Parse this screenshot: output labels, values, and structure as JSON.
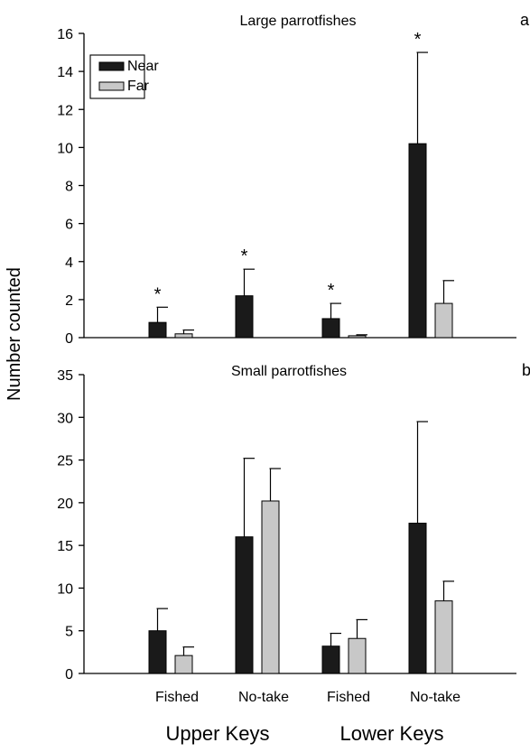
{
  "ylabel": "Number counted",
  "xlabels": [
    "Fished",
    "No-take",
    "Fished",
    "No-take"
  ],
  "group_labels": [
    "Upper Keys",
    "Lower Keys"
  ],
  "colors": {
    "near": "#1a1a1a",
    "far": "#c8c8c8",
    "axis": "#000000"
  },
  "chart_data": [
    {
      "type": "bar",
      "panel": "a",
      "title": "Large parrotfishes",
      "categories": [
        "Fished",
        "No-take",
        "Fished",
        "No-take"
      ],
      "legend": {
        "entries": [
          "Near",
          "Far"
        ],
        "placement": "top-left"
      },
      "ylim": [
        0,
        16
      ],
      "yticks": [
        "0",
        "2",
        "4",
        "6",
        "8",
        "10",
        "12",
        "14",
        "16"
      ],
      "series": [
        {
          "name": "Near",
          "values": [
            0.8,
            2.2,
            1.0,
            10.2
          ],
          "errors": [
            0.8,
            1.4,
            0.8,
            4.8
          ]
        },
        {
          "name": "Far",
          "values": [
            0.2,
            0,
            0.1,
            1.8
          ],
          "errors": [
            0.2,
            0,
            0.05,
            1.2
          ]
        }
      ],
      "significance": [
        "*",
        "*",
        "*",
        "*"
      ]
    },
    {
      "type": "bar",
      "panel": "b",
      "title": "Small parrotfishes",
      "categories": [
        "Fished",
        "No-take",
        "Fished",
        "No-take"
      ],
      "ylim": [
        0,
        35
      ],
      "yticks": [
        "0",
        "5",
        "10",
        "15",
        "20",
        "25",
        "30",
        "35"
      ],
      "series": [
        {
          "name": "Near",
          "values": [
            5.0,
            16.0,
            3.2,
            17.6
          ],
          "errors": [
            2.6,
            9.2,
            1.5,
            11.9
          ]
        },
        {
          "name": "Far",
          "values": [
            2.1,
            20.2,
            4.1,
            8.5
          ],
          "errors": [
            1.0,
            3.8,
            2.2,
            2.3
          ]
        }
      ]
    }
  ]
}
